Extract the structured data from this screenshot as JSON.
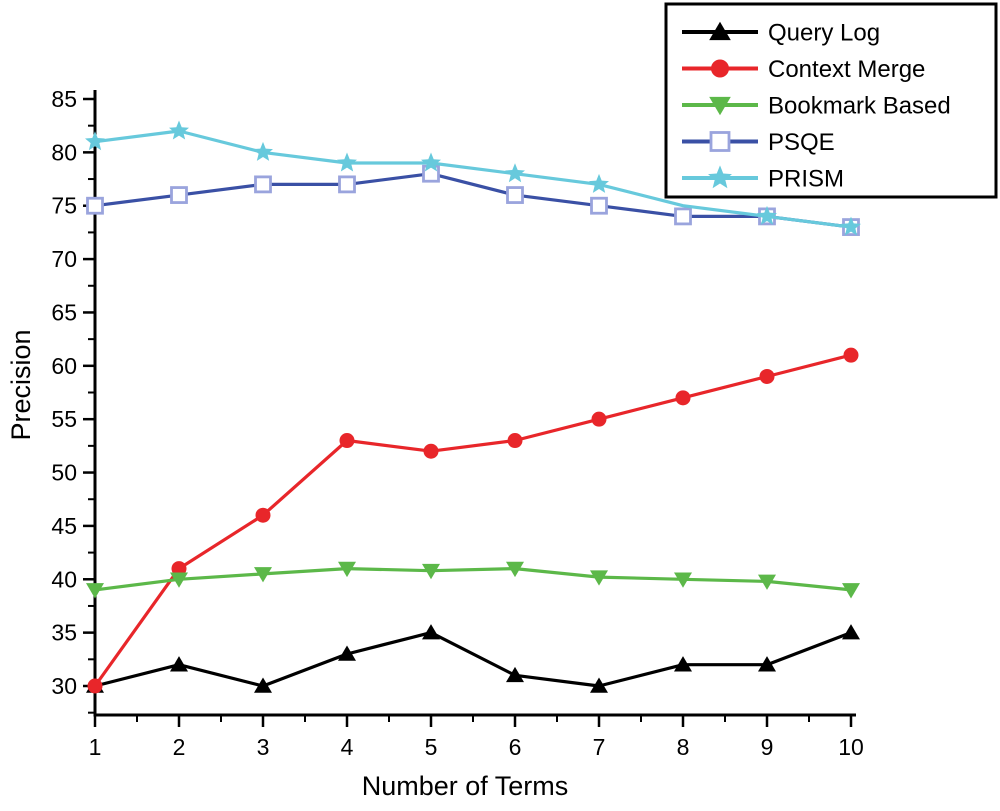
{
  "chart_data": {
    "type": "line",
    "title": "",
    "xlabel": "Number of Terms",
    "ylabel": "Precision",
    "x": [
      1,
      2,
      3,
      4,
      5,
      6,
      7,
      8,
      9,
      10
    ],
    "xticks": [
      1,
      2,
      3,
      4,
      5,
      6,
      7,
      8,
      9,
      10
    ],
    "yticks": [
      30,
      35,
      40,
      45,
      50,
      55,
      60,
      65,
      70,
      75,
      80,
      85
    ],
    "xlim": [
      1,
      10
    ],
    "ylim": [
      30,
      85
    ],
    "grid": false,
    "legend_position": "top-right",
    "axis_color": "#000000",
    "background_color": "#ffffff",
    "series": [
      {
        "name": "Query Log",
        "color": "#000000",
        "marker": "triangle-up",
        "values": [
          30,
          32,
          30,
          33,
          35,
          31,
          30,
          32,
          32,
          35
        ]
      },
      {
        "name": "Context Merge",
        "color": "#e8262a",
        "marker": "circle",
        "values": [
          30,
          41,
          46,
          53,
          52,
          53,
          55,
          57,
          59,
          61
        ]
      },
      {
        "name": "Bookmark Based",
        "color": "#5cb849",
        "marker": "triangle-down",
        "values": [
          39,
          40,
          40.5,
          41,
          40.8,
          41,
          40.2,
          40,
          39.8,
          39
        ]
      },
      {
        "name": "PSQE",
        "color": "#3a50a5",
        "marker": "square-open",
        "marker_stroke": "#9aa4dd",
        "marker_fill": "#ffffff",
        "values": [
          75,
          76,
          77,
          77,
          78,
          76,
          75,
          74,
          74,
          73
        ]
      },
      {
        "name": "PRISM",
        "color": "#67c9dc",
        "marker": "star",
        "marker_hidden_at_x": [
          8
        ],
        "values": [
          81,
          82,
          80,
          79,
          79,
          78,
          77,
          75,
          74,
          73
        ]
      }
    ]
  }
}
